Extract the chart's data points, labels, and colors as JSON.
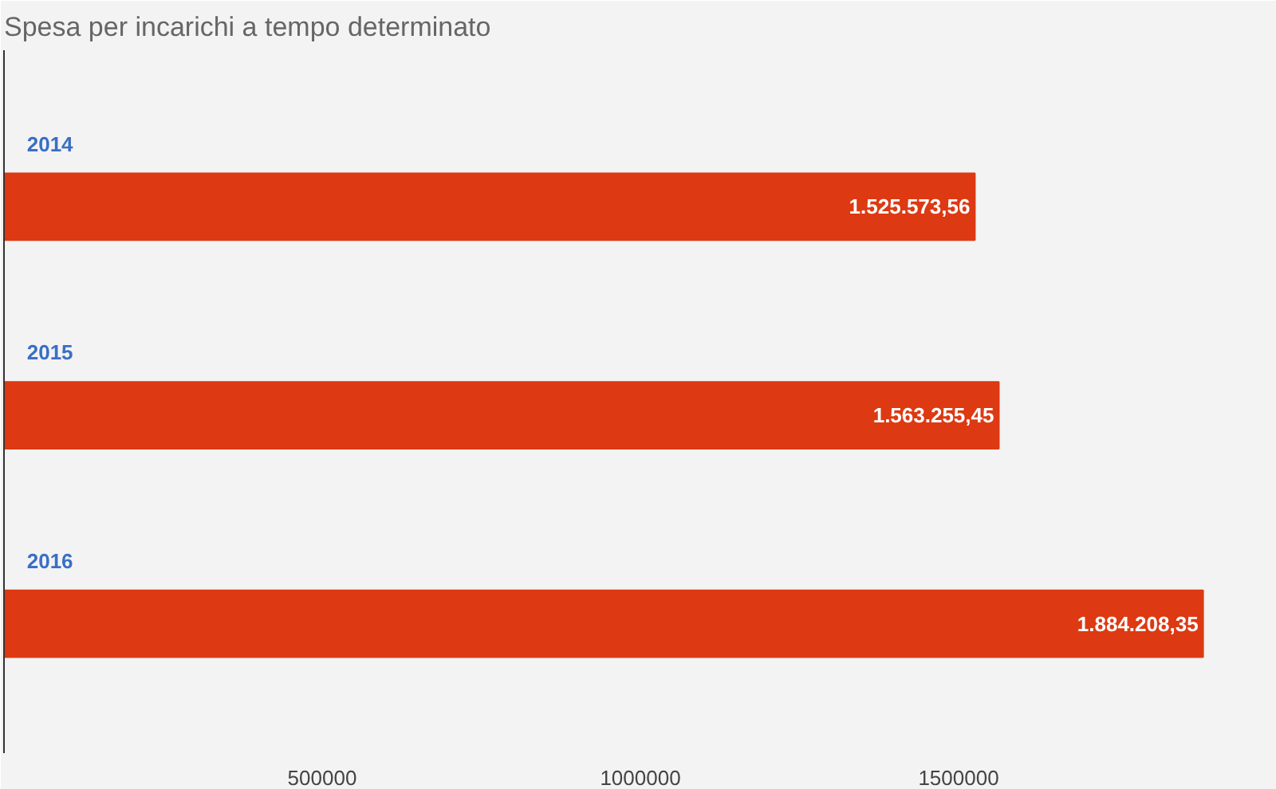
{
  "chart_data": {
    "type": "bar",
    "orientation": "horizontal",
    "title": "Spesa per incarichi a tempo determinato",
    "categories": [
      "2014",
      "2015",
      "2016"
    ],
    "values": [
      1525573.56,
      1563255.45,
      1884208.35
    ],
    "value_labels": [
      "1.525.573,56",
      "1.563.255,45",
      "1.884.208,35"
    ],
    "color": "#dd3912",
    "xlim": [
      0,
      2000000
    ],
    "xticks": [
      500000,
      1000000,
      1500000
    ],
    "grid": false
  }
}
